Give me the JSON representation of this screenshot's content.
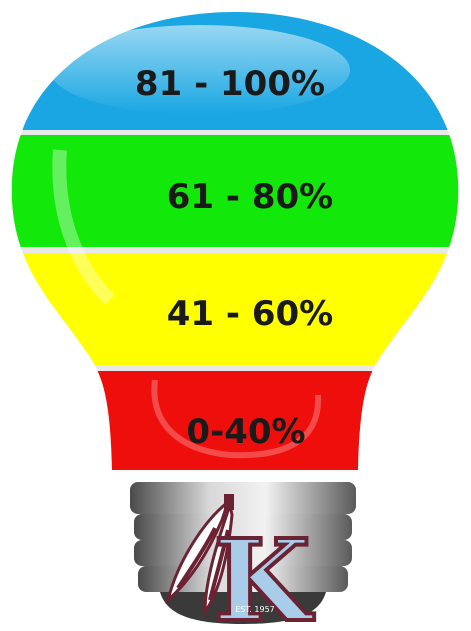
{
  "bands": [
    {
      "label": "81 - 100%",
      "color": "#19a6e2"
    },
    {
      "label": "61 - 80%",
      "color": "#12e80a"
    },
    {
      "label": "41 - 60%",
      "color": "#ffff00"
    },
    {
      "label": "0-40%",
      "color": "#ee0f0c"
    }
  ],
  "logo": {
    "letter": "K",
    "stamp": "EST. 1957",
    "letter_color": "#a9cde8",
    "outline_color": "#6b2233"
  },
  "base": {
    "color": "#9a9a9a"
  }
}
